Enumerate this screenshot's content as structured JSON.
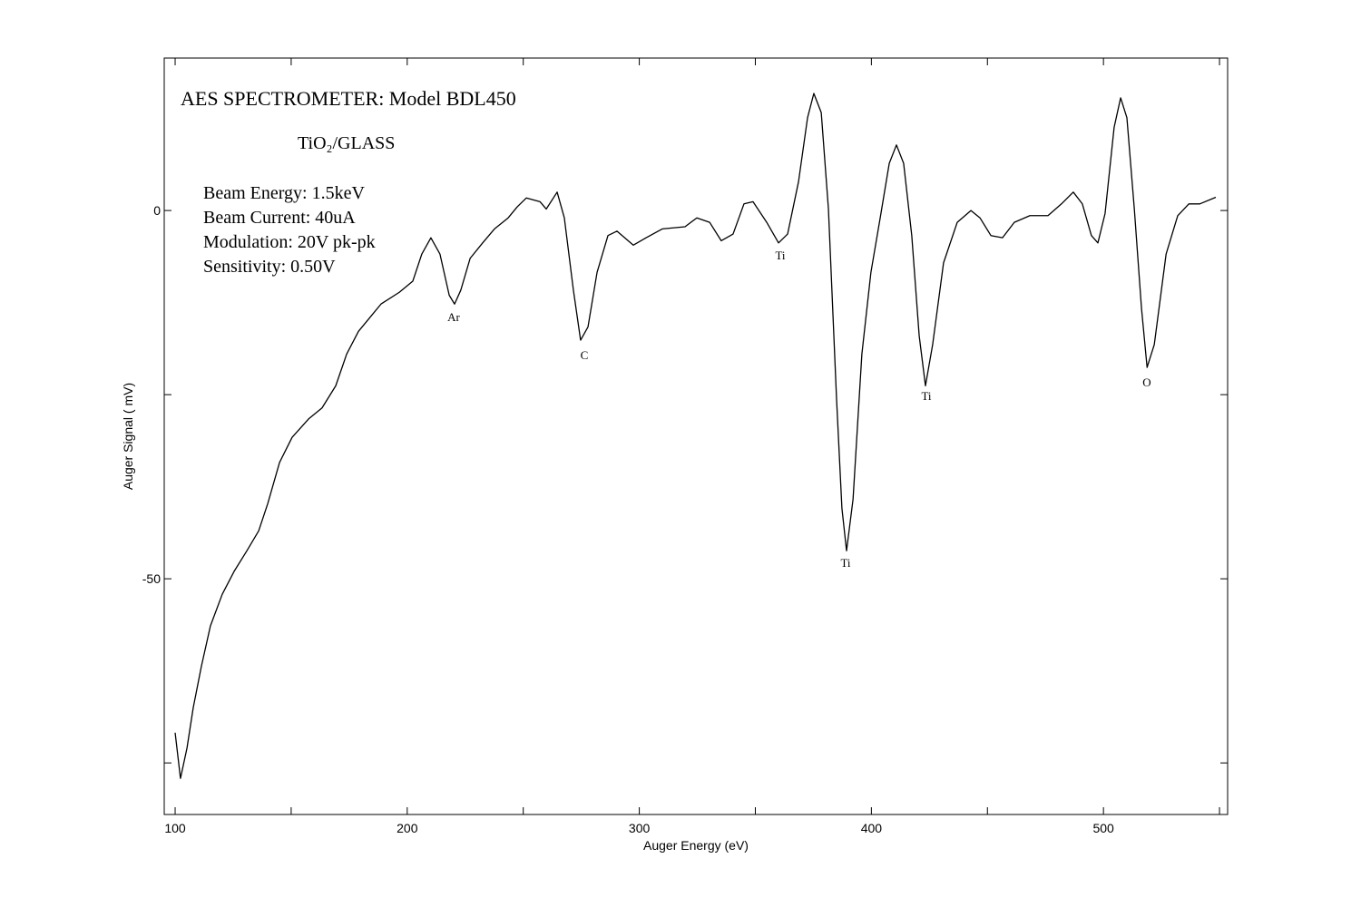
{
  "chart_data": {
    "type": "line",
    "title": "AES SPECTROMETER: Model BDL450",
    "subtitle": "TiO₂/GLASS",
    "notes": [
      "Beam Energy: 1.5keV",
      "Beam Current: 40uA",
      "Modulation: 20V pk-pk",
      "Sensitivity: 0.50V"
    ],
    "peak_labels": [
      "Ar",
      "C",
      "Ti",
      "Ti",
      "Ti",
      "O"
    ],
    "x_label": "Auger Energy (eV)",
    "y_label": "Auger Signal ( mV)",
    "color": "#000000",
    "x": [
      100,
      102.3,
      105.1,
      107.8,
      111.3,
      115.2,
      120.3,
      125.4,
      130.9,
      136,
      139.9,
      145,
      150.4,
      157.5,
      163.3,
      169.2,
      173.9,
      179,
      184,
      188.7,
      196.6,
      202.4,
      206.3,
      210.2,
      214.1,
      218.1,
      220.4,
      223.1,
      227.1,
      232.5,
      237.6,
      243.5,
      247.4,
      251.3,
      257.2,
      259.9,
      264.6,
      267.7,
      271.6,
      274.7,
      277.9,
      281.8,
      286.5,
      290.4,
      297.4,
      302.9,
      309.9,
      319.7,
      324.8,
      330.3,
      335.3,
      340.4,
      345.1,
      349,
      354.9,
      360,
      363.9,
      368.6,
      372.5,
      375.2,
      378.4,
      381.5,
      385,
      387.3,
      389.3,
      392.1,
      395.9,
      399.8,
      403.8,
      407.7,
      410.8,
      413.9,
      417.4,
      420.6,
      423.3,
      426.4,
      431.1,
      437,
      442.9,
      446.8,
      451.5,
      456.5,
      461.6,
      468.3,
      476.1,
      481.9,
      487,
      490.9,
      494.8,
      497.6,
      500.7,
      504.6,
      507.4,
      510.1,
      513.3,
      516.4,
      518.8,
      521.9,
      527,
      532,
      536.8,
      541.5,
      548.4
    ],
    "values": [
      -70.9,
      -77.1,
      -73.0,
      -67.5,
      -61.9,
      -56.4,
      -52.1,
      -49.0,
      -46.2,
      -43.5,
      -39.8,
      -34.2,
      -30.8,
      -28.3,
      -26.8,
      -23.8,
      -19.5,
      -16.4,
      -14.5,
      -12.7,
      -11.1,
      -9.6,
      -5.9,
      -3.7,
      -5.9,
      -11.5,
      -12.7,
      -10.8,
      -6.5,
      -4.4,
      -2.5,
      -1.0,
      0.5,
      1.7,
      1.2,
      0.2,
      2.5,
      -1.0,
      -10.8,
      -17.6,
      -15.8,
      -8.4,
      -3.4,
      -2.8,
      -4.7,
      -3.7,
      -2.5,
      -2.2,
      -1.0,
      -1.6,
      -4.1,
      -3.2,
      0.9,
      1.2,
      -1.6,
      -4.4,
      -3.2,
      3.9,
      12.6,
      15.9,
      13.3,
      0.2,
      -25.6,
      -40.4,
      -46.2,
      -39.2,
      -19.5,
      -8.4,
      -1.0,
      6.4,
      8.9,
      6.4,
      -3.4,
      -17.0,
      -23.8,
      -18.2,
      -7.1,
      -1.6,
      0,
      -1.0,
      -3.4,
      -3.7,
      -1.6,
      -0.7,
      -0.7,
      0.9,
      2.5,
      0.9,
      -3.4,
      -4.4,
      -0.4,
      11.3,
      15.3,
      12.6,
      0.2,
      -13.3,
      -21.3,
      -18.2,
      -5.9,
      -0.7,
      0.9,
      0.9,
      1.8
    ],
    "xlim": [
      95.3,
      553.5
    ],
    "ylim": [
      -82.0,
      20.7
    ],
    "xticks": [
      100,
      200,
      300,
      400,
      500
    ],
    "xminorticks": [
      150,
      250,
      350,
      450,
      550
    ],
    "yticks": [
      0,
      -50
    ],
    "yminorticks": [
      -25,
      -75
    ]
  }
}
